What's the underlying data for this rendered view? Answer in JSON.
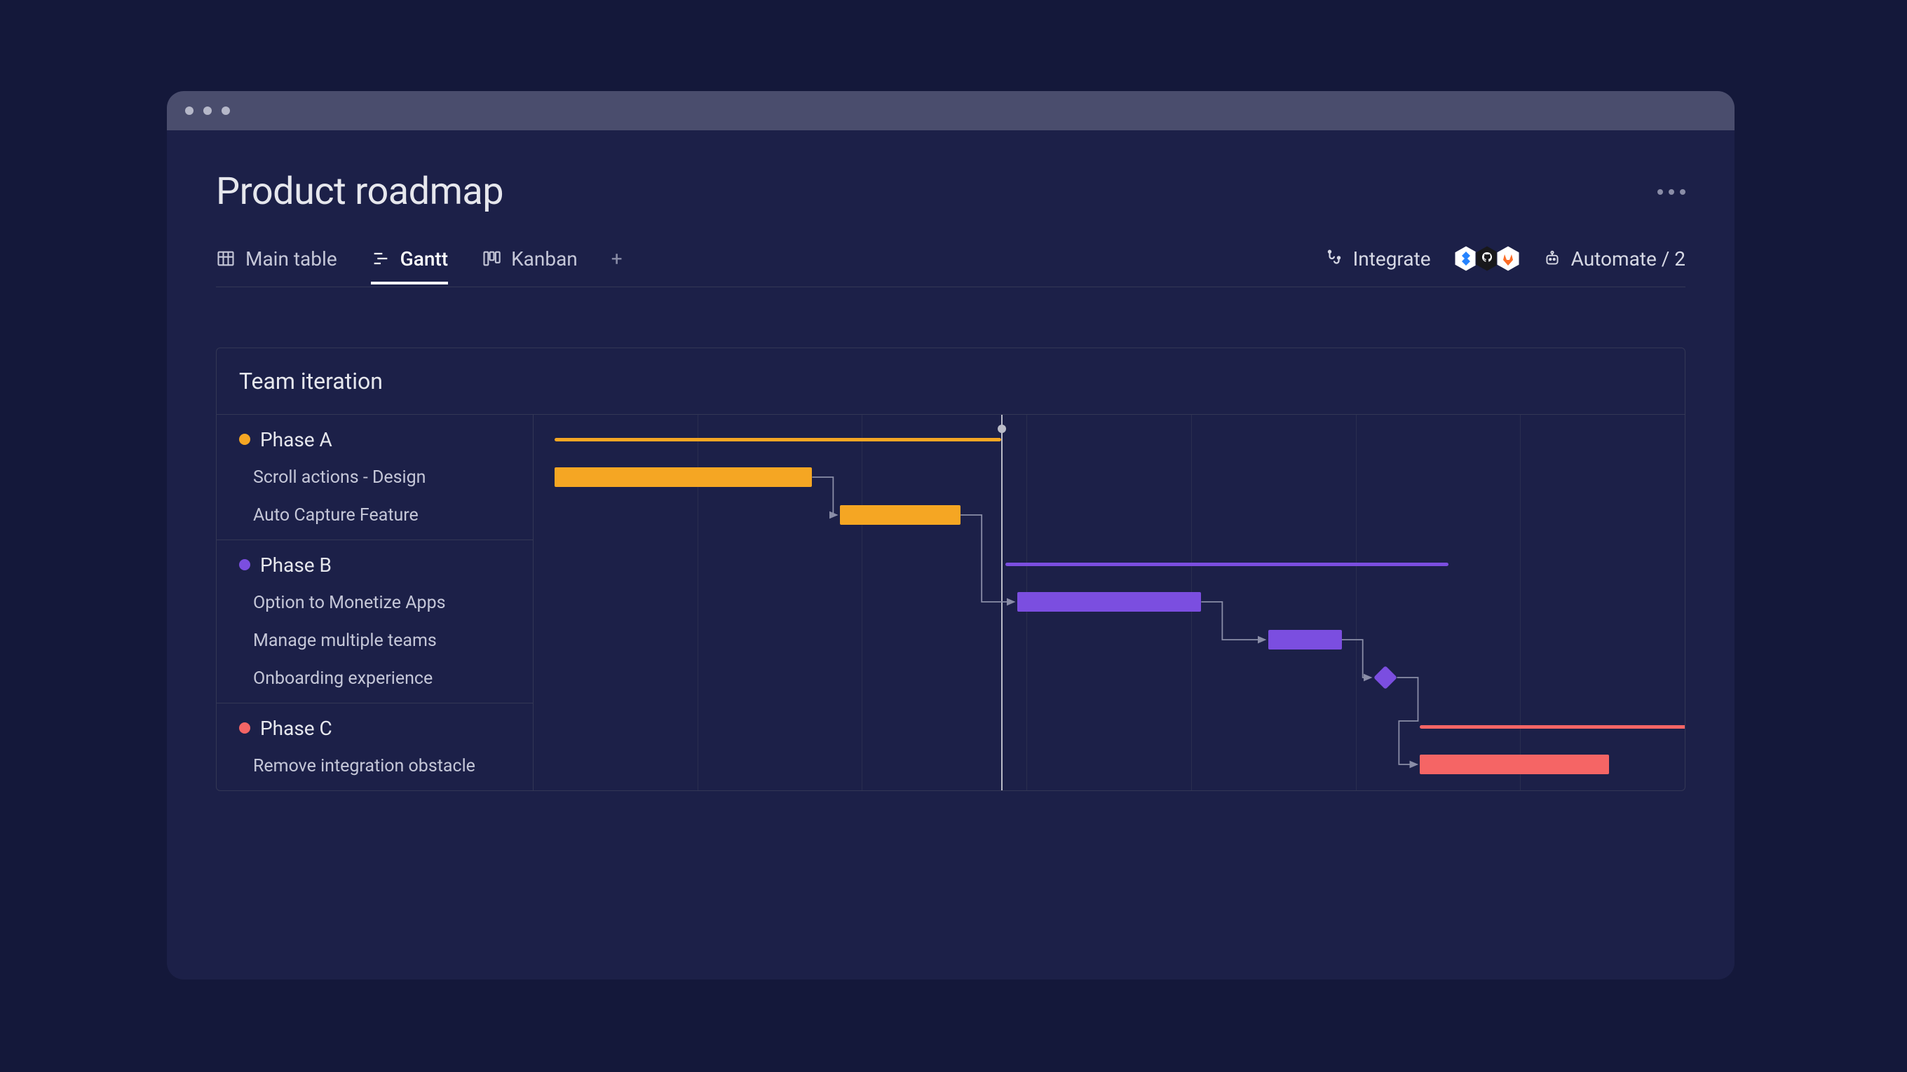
{
  "page": {
    "title": "Product roadmap"
  },
  "tabs": [
    {
      "id": "main-table",
      "label": "Main table",
      "active": false
    },
    {
      "id": "gantt",
      "label": "Gantt",
      "active": true
    },
    {
      "id": "kanban",
      "label": "Kanban",
      "active": false
    }
  ],
  "actions": {
    "integrate": "Integrate",
    "automate": "Automate / 2"
  },
  "integrations": [
    {
      "name": "jira",
      "bg": "#ffffff",
      "fg": "#2684ff"
    },
    {
      "name": "github",
      "bg": "#18181b",
      "fg": "#ffffff"
    },
    {
      "name": "gitlab",
      "bg": "#ffffff",
      "fg": "#fc6d26"
    }
  ],
  "gantt": {
    "title": "Team iteration",
    "timeline_columns": 7,
    "today_marker_percent": 40.6,
    "colors": {
      "phase_a": "#f5a623",
      "phase_b": "#7b4ee0",
      "phase_c": "#f56565",
      "grid": "#2a2e4f",
      "connector": "#8a8da7"
    },
    "phases": [
      {
        "id": "a",
        "label": "Phase A",
        "color": "#f5a623",
        "group_bar": {
          "start_pct": 1.8,
          "width_pct": 38.8
        },
        "tasks": [
          {
            "label": "Scroll actions - Design",
            "bar": {
              "start_pct": 1.8,
              "width_pct": 22.4
            }
          },
          {
            "label": "Auto Capture Feature",
            "bar": {
              "start_pct": 26.6,
              "width_pct": 10.5
            }
          }
        ]
      },
      {
        "id": "b",
        "label": "Phase B",
        "color": "#7b4ee0",
        "group_bar": {
          "start_pct": 41.0,
          "width_pct": 38.5
        },
        "tasks": [
          {
            "label": "Option to Monetize Apps",
            "bar": {
              "start_pct": 42.0,
              "width_pct": 16.0
            }
          },
          {
            "label": "Manage multiple teams",
            "bar": {
              "start_pct": 63.8,
              "width_pct": 6.4
            }
          },
          {
            "label": "Onboarding experience",
            "milestone": {
              "pct": 74.0
            }
          }
        ]
      },
      {
        "id": "c",
        "label": "Phase C",
        "color": "#f56565",
        "group_bar": {
          "start_pct": 77.0,
          "width_pct": 28.3
        },
        "tasks": [
          {
            "label": "Remove integration obstacle",
            "bar": {
              "start_pct": 77.0,
              "width_pct": 16.4
            }
          }
        ]
      }
    ],
    "row_heights": {
      "phase_header": 54,
      "task": 54,
      "block_pad": 8
    }
  }
}
